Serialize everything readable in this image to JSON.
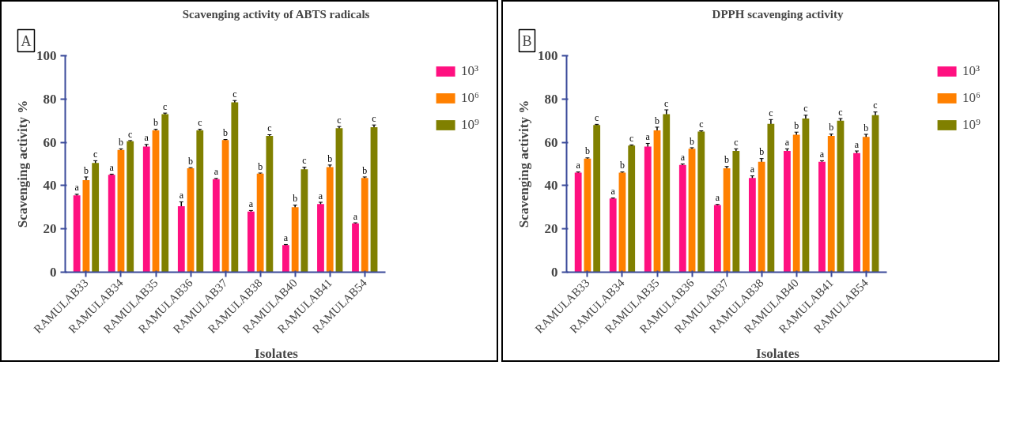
{
  "chart_data": [
    {
      "type": "bar",
      "title": "Scavenging activity of ABTS radicals",
      "xlabel": "Isolates",
      "ylabel": "Scavenging activity %",
      "annotations": [
        "A"
      ],
      "categories": [
        "RAMULAB33",
        "RAMULAB34",
        "RAMULAB35",
        "RAMULAB36",
        "RAMULAB37",
        "RAMULAB38",
        "RAMULAB40",
        "RAMULAB41",
        "RAMULAB54"
      ],
      "series": [
        {
          "name": "10³",
          "color": "#ff1080",
          "values": [
            35.5,
            45,
            58,
            30.5,
            43,
            28,
            12.5,
            31.5,
            22.5
          ],
          "errors": [
            0.5,
            0.3,
            1,
            2,
            0.3,
            0.5,
            0.3,
            0.8,
            0.3
          ],
          "value_labels": [
            "a",
            "a",
            "a",
            "a",
            "a",
            "a",
            "a",
            "a",
            "a"
          ]
        },
        {
          "name": "10⁶",
          "color": "#ff8000",
          "values": [
            42.5,
            56.5,
            65.5,
            48,
            61,
            45.5,
            30,
            48.5,
            43.5
          ],
          "errors": [
            1.5,
            0.5,
            0.5,
            0.3,
            0.3,
            0.3,
            1,
            1,
            0.5
          ],
          "value_labels": [
            "b",
            "b",
            "b",
            "b",
            "b",
            "b",
            "b",
            "b",
            "b"
          ]
        },
        {
          "name": "10⁹",
          "color": "#808000",
          "values": [
            50.5,
            60.5,
            73,
            65.5,
            78.5,
            63,
            47.5,
            66.5,
            67
          ],
          "errors": [
            1,
            0.3,
            0.5,
            0.5,
            0.8,
            0.5,
            1,
            0.8,
            1
          ],
          "value_labels": [
            "c",
            "c",
            "c",
            "c",
            "c",
            "c",
            "c",
            "c",
            "c"
          ]
        }
      ],
      "ylim": [
        0,
        100
      ],
      "yticks": [
        0,
        20,
        40,
        60,
        80,
        100
      ],
      "grid": false,
      "legend": "top right"
    },
    {
      "type": "bar",
      "title": "DPPH scavenging activity",
      "xlabel": "Isolates",
      "ylabel": "Scavenging activity %",
      "annotations": [
        "B"
      ],
      "categories": [
        "RAMULAB33",
        "RAMULAB34",
        "RAMULAB35",
        "RAMULAB36",
        "RAMULAB37",
        "RAMULAB38",
        "RAMULAB40",
        "RAMULAB41",
        "RAMULAB54"
      ],
      "series": [
        {
          "name": "10³",
          "color": "#ff1080",
          "values": [
            46,
            34,
            58,
            49.5,
            31,
            43.5,
            56,
            51,
            55
          ],
          "errors": [
            0.3,
            0.3,
            1.5,
            0.5,
            0.3,
            1,
            1,
            0.5,
            1
          ],
          "value_labels": [
            "a",
            "a",
            "a",
            "a",
            "a",
            "a",
            "a",
            "a",
            "a"
          ]
        },
        {
          "name": "10⁶",
          "color": "#ff8000",
          "values": [
            52.5,
            46,
            65.5,
            57,
            48,
            51,
            63.5,
            63,
            62.5
          ],
          "errors": [
            0.3,
            0.3,
            1.5,
            0.5,
            0.8,
            1.5,
            1.2,
            0.8,
            1.2
          ],
          "value_labels": [
            "b",
            "b",
            "b",
            "b",
            "b",
            "b",
            "b",
            "b",
            "b"
          ]
        },
        {
          "name": "10⁹",
          "color": "#808000",
          "values": [
            68,
            58.5,
            73,
            65,
            56,
            68.5,
            71,
            70,
            72.5
          ],
          "errors": [
            0.3,
            0.3,
            2,
            0.3,
            1,
            2,
            1.5,
            1,
            1.5
          ],
          "value_labels": [
            "c",
            "c",
            "c",
            "c",
            "c",
            "c",
            "c",
            "c",
            "c"
          ]
        }
      ],
      "ylim": [
        0,
        100
      ],
      "yticks": [
        0,
        20,
        40,
        60,
        80,
        100
      ],
      "grid": false,
      "legend": "top right"
    }
  ]
}
